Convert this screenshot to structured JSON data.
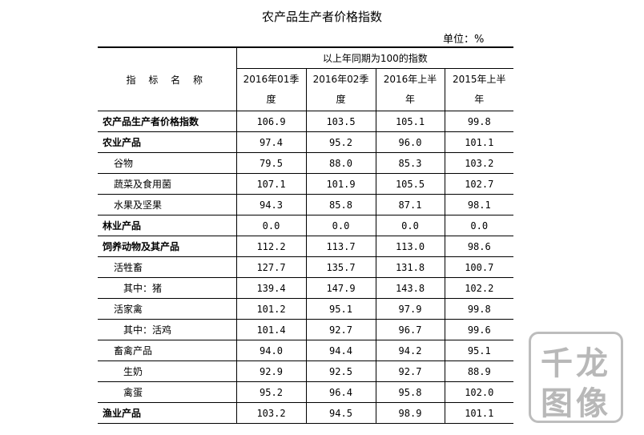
{
  "title": "农产品生产者价格指数",
  "unit": "单位：%",
  "header": {
    "name_col": "指 标 名 称",
    "group": "以上年同期为100的指数",
    "columns": [
      {
        "line1": "2016年01季",
        "line2": "度"
      },
      {
        "line1": "2016年02季",
        "line2": "度"
      },
      {
        "line1": "2016年上半",
        "line2": "年"
      },
      {
        "line1": "2015年上半",
        "line2": "年"
      }
    ]
  },
  "rows": [
    {
      "name": "农产品生产者价格指数",
      "v": [
        "106.9",
        "103.5",
        "105.1",
        "99.8"
      ]
    },
    {
      "name": "农业产品",
      "v": [
        "97.4",
        "95.2",
        "96.0",
        "101.1"
      ]
    },
    {
      "name": "谷物",
      "v": [
        "79.5",
        "88.0",
        "85.3",
        "103.2"
      ]
    },
    {
      "name": "蔬菜及食用菌",
      "v": [
        "107.1",
        "101.9",
        "105.5",
        "102.7"
      ]
    },
    {
      "name": "水果及坚果",
      "v": [
        "94.3",
        "85.8",
        "87.1",
        "98.1"
      ]
    },
    {
      "name": "林业产品",
      "v": [
        "0.0",
        "0.0",
        "0.0",
        "0.0"
      ]
    },
    {
      "name": "饲养动物及其产品",
      "v": [
        "112.2",
        "113.7",
        "113.0",
        "98.6"
      ]
    },
    {
      "name": "活牲畜",
      "v": [
        "127.7",
        "135.7",
        "131.8",
        "100.7"
      ]
    },
    {
      "name": "其中：猪",
      "v": [
        "139.4",
        "147.9",
        "143.8",
        "102.2"
      ]
    },
    {
      "name": "活家禽",
      "v": [
        "101.2",
        "95.1",
        "97.9",
        "99.8"
      ]
    },
    {
      "name": "其中：活鸡",
      "v": [
        "101.4",
        "92.7",
        "96.7",
        "99.6"
      ]
    },
    {
      "name": "畜禽产品",
      "v": [
        "94.0",
        "94.4",
        "94.2",
        "95.1"
      ]
    },
    {
      "name": "生奶",
      "v": [
        "92.9",
        "92.5",
        "92.7",
        "88.9"
      ]
    },
    {
      "name": "禽蛋",
      "v": [
        "95.2",
        "96.4",
        "95.8",
        "102.0"
      ]
    },
    {
      "name": "渔业产品",
      "v": [
        "103.2",
        "94.5",
        "98.9",
        "101.1"
      ]
    }
  ],
  "watermark": {
    "line1": "千龙",
    "line2": "图像"
  }
}
